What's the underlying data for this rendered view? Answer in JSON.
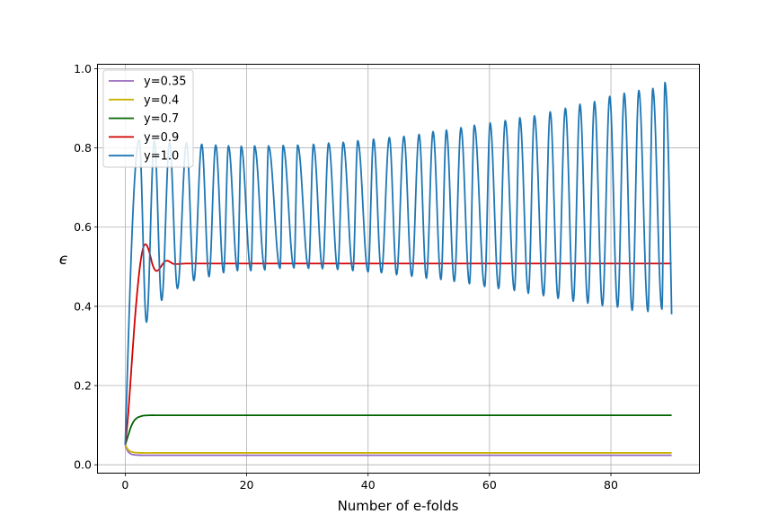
{
  "chart_data": {
    "type": "line",
    "title": "",
    "xlabel": "Number of e-folds",
    "ylabel": "ϵ",
    "xlim": [
      -4.5,
      94.5
    ],
    "ylim": [
      -0.02,
      1.01
    ],
    "xticks": [
      0,
      20,
      40,
      60,
      80
    ],
    "xtick_labels": [
      "0",
      "20",
      "40",
      "60",
      "80"
    ],
    "yticks": [
      0.0,
      0.2,
      0.4,
      0.6,
      0.8,
      1.0
    ],
    "ytick_labels": [
      "0.0",
      "0.2",
      "0.4",
      "0.6",
      "0.8",
      "1.0"
    ],
    "grid": true,
    "legend_position": "upper-left",
    "series": [
      {
        "name": "y=0.35",
        "color": "#9467bd",
        "x": [
          0,
          0.3,
          0.6,
          1,
          1.5,
          2,
          3,
          5,
          10,
          30,
          60,
          90
        ],
        "y": [
          0.05,
          0.038,
          0.031,
          0.027,
          0.025,
          0.0245,
          0.024,
          0.024,
          0.024,
          0.024,
          0.024,
          0.024
        ]
      },
      {
        "name": "y=0.4",
        "color": "#c8b400",
        "x": [
          0,
          0.3,
          0.6,
          1,
          1.5,
          2,
          3,
          5,
          10,
          30,
          60,
          90
        ],
        "y": [
          0.05,
          0.042,
          0.036,
          0.033,
          0.031,
          0.0305,
          0.03,
          0.03,
          0.03,
          0.03,
          0.03,
          0.03
        ]
      },
      {
        "name": "y=0.7",
        "color": "#006400",
        "x": [
          0,
          0.5,
          1,
          1.5,
          2,
          2.5,
          3,
          4,
          5,
          7,
          10,
          30,
          60,
          90
        ],
        "y": [
          0.05,
          0.075,
          0.098,
          0.112,
          0.119,
          0.122,
          0.124,
          0.125,
          0.125,
          0.125,
          0.125,
          0.125,
          0.125,
          0.125
        ]
      },
      {
        "name": "y=0.9",
        "color": "#d40000",
        "x": [
          0,
          0.5,
          1,
          1.5,
          2,
          2.5,
          3,
          3.5,
          4,
          4.5,
          5,
          5.5,
          6,
          6.5,
          7,
          7.5,
          8,
          9,
          10,
          12,
          15,
          20,
          30,
          60,
          90
        ],
        "y": [
          0.05,
          0.13,
          0.24,
          0.35,
          0.44,
          0.51,
          0.55,
          0.555,
          0.535,
          0.505,
          0.49,
          0.492,
          0.503,
          0.513,
          0.515,
          0.511,
          0.507,
          0.507,
          0.508,
          0.508,
          0.508,
          0.508,
          0.508,
          0.508,
          0.508
        ]
      },
      {
        "name": "y=1.0",
        "color": "#1f77b4",
        "x0": 0,
        "y0": 0.05,
        "x_end": 90,
        "y_end": 0.38,
        "peaks": [
          [
            2.3,
            0.82
          ],
          [
            4.8,
            0.818
          ],
          [
            7.3,
            0.815
          ],
          [
            10.1,
            0.813
          ],
          [
            12.6,
            0.809
          ],
          [
            14.9,
            0.807
          ],
          [
            17,
            0.805
          ],
          [
            19.1,
            0.804
          ],
          [
            21.3,
            0.805
          ],
          [
            23.6,
            0.805
          ],
          [
            26,
            0.806
          ],
          [
            28.4,
            0.807
          ],
          [
            31,
            0.809
          ],
          [
            33.5,
            0.812
          ],
          [
            35.9,
            0.814
          ],
          [
            38.3,
            0.818
          ],
          [
            40.9,
            0.822
          ],
          [
            43.5,
            0.826
          ],
          [
            45.9,
            0.829
          ],
          [
            48.4,
            0.834
          ],
          [
            50.7,
            0.841
          ],
          [
            52.9,
            0.845
          ],
          [
            55.3,
            0.851
          ],
          [
            57.5,
            0.857
          ],
          [
            60.1,
            0.863
          ],
          [
            62.6,
            0.869
          ],
          [
            65,
            0.876
          ],
          [
            67.4,
            0.881
          ],
          [
            70,
            0.891
          ],
          [
            72.5,
            0.9
          ],
          [
            74.9,
            0.91
          ],
          [
            77.3,
            0.917
          ],
          [
            79.8,
            0.93
          ],
          [
            82.2,
            0.938
          ],
          [
            84.6,
            0.945
          ],
          [
            86.9,
            0.95
          ],
          [
            88.9,
            0.965
          ]
        ],
        "troughs": [
          [
            3.5,
            0.36
          ],
          [
            6,
            0.415
          ],
          [
            8.6,
            0.445
          ],
          [
            11.3,
            0.465
          ],
          [
            13.8,
            0.475
          ],
          [
            16.2,
            0.485
          ],
          [
            18.5,
            0.49
          ],
          [
            20.7,
            0.49
          ],
          [
            23,
            0.492
          ],
          [
            25.5,
            0.496
          ],
          [
            27.8,
            0.497
          ],
          [
            30.2,
            0.496
          ],
          [
            32.5,
            0.495
          ],
          [
            35,
            0.493
          ],
          [
            37.5,
            0.49
          ],
          [
            40,
            0.487
          ],
          [
            42.2,
            0.485
          ],
          [
            44.7,
            0.48
          ],
          [
            47.2,
            0.476
          ],
          [
            49.6,
            0.471
          ],
          [
            52,
            0.468
          ],
          [
            54.2,
            0.463
          ],
          [
            56.7,
            0.457
          ],
          [
            59.2,
            0.45
          ],
          [
            61.5,
            0.445
          ],
          [
            64.1,
            0.44
          ],
          [
            66.4,
            0.433
          ],
          [
            68.9,
            0.427
          ],
          [
            71.3,
            0.42
          ],
          [
            73.8,
            0.413
          ],
          [
            76.2,
            0.408
          ],
          [
            78.6,
            0.402
          ],
          [
            81.1,
            0.398
          ],
          [
            83.5,
            0.39
          ],
          [
            86.1,
            0.387
          ],
          [
            88.4,
            0.393
          ]
        ]
      }
    ]
  }
}
